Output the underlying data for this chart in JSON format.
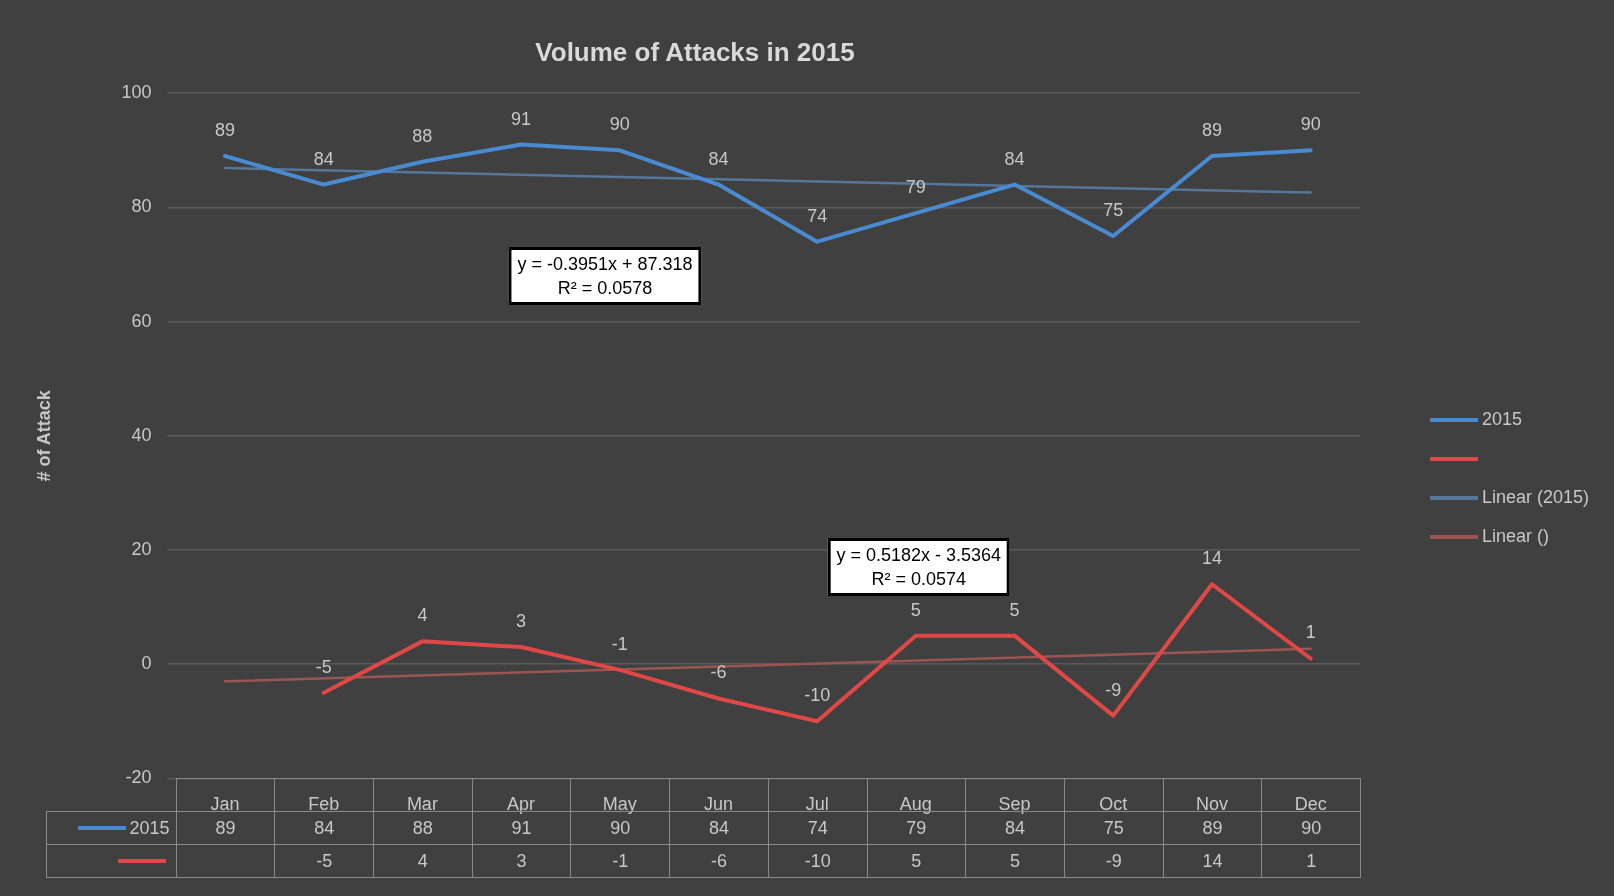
{
  "chart_data": {
    "type": "line",
    "title": "Volume of Attacks in 2015",
    "ylabel": "# of Attack",
    "categories": [
      "Jan",
      "Feb",
      "Mar",
      "Apr",
      "May",
      "Jun",
      "Jul",
      "Aug",
      "Sep",
      "Oct",
      "Nov",
      "Dec"
    ],
    "series": [
      {
        "name": "2015",
        "color": "#4a8ad0",
        "values": [
          89,
          84,
          88,
          91,
          90,
          84,
          74,
          79,
          84,
          75,
          89,
          90
        ],
        "value_labels": [
          "89",
          "84",
          "88",
          "91",
          "90",
          "84",
          "74",
          "79",
          "84",
          "75",
          "89",
          "90"
        ]
      },
      {
        "color": "#e04848",
        "values": [
          null,
          -5,
          4,
          3,
          -1,
          -6,
          -10,
          5,
          5,
          -9,
          14,
          1
        ],
        "value_labels": [
          null,
          "-5",
          "4",
          "3",
          "-1",
          "-6",
          "-10",
          "5",
          "5",
          "-9",
          "14",
          "1"
        ]
      },
      {
        "name": "Linear (2015)",
        "type": "line",
        "color": "#56779c",
        "x": [
          "Jan",
          "Dec"
        ],
        "values": [
          86.9,
          82.6
        ]
      },
      {
        "name": "Linear ()",
        "type": "line",
        "color": "#9c5552",
        "x": [
          "Jan",
          "Dec"
        ],
        "values": [
          -3.0,
          2.7
        ]
      }
    ],
    "ylim": [
      -20,
      100
    ],
    "yticks": [
      -20,
      0,
      20,
      40,
      60,
      80,
      100
    ],
    "grid": "y",
    "legend": "right",
    "marker": "none",
    "annotations": [
      "y = -0.3951x + 87.318\nR² = 0.0578",
      "y = 0.5182x - 3.5364\nR² = 0.0574"
    ]
  }
}
